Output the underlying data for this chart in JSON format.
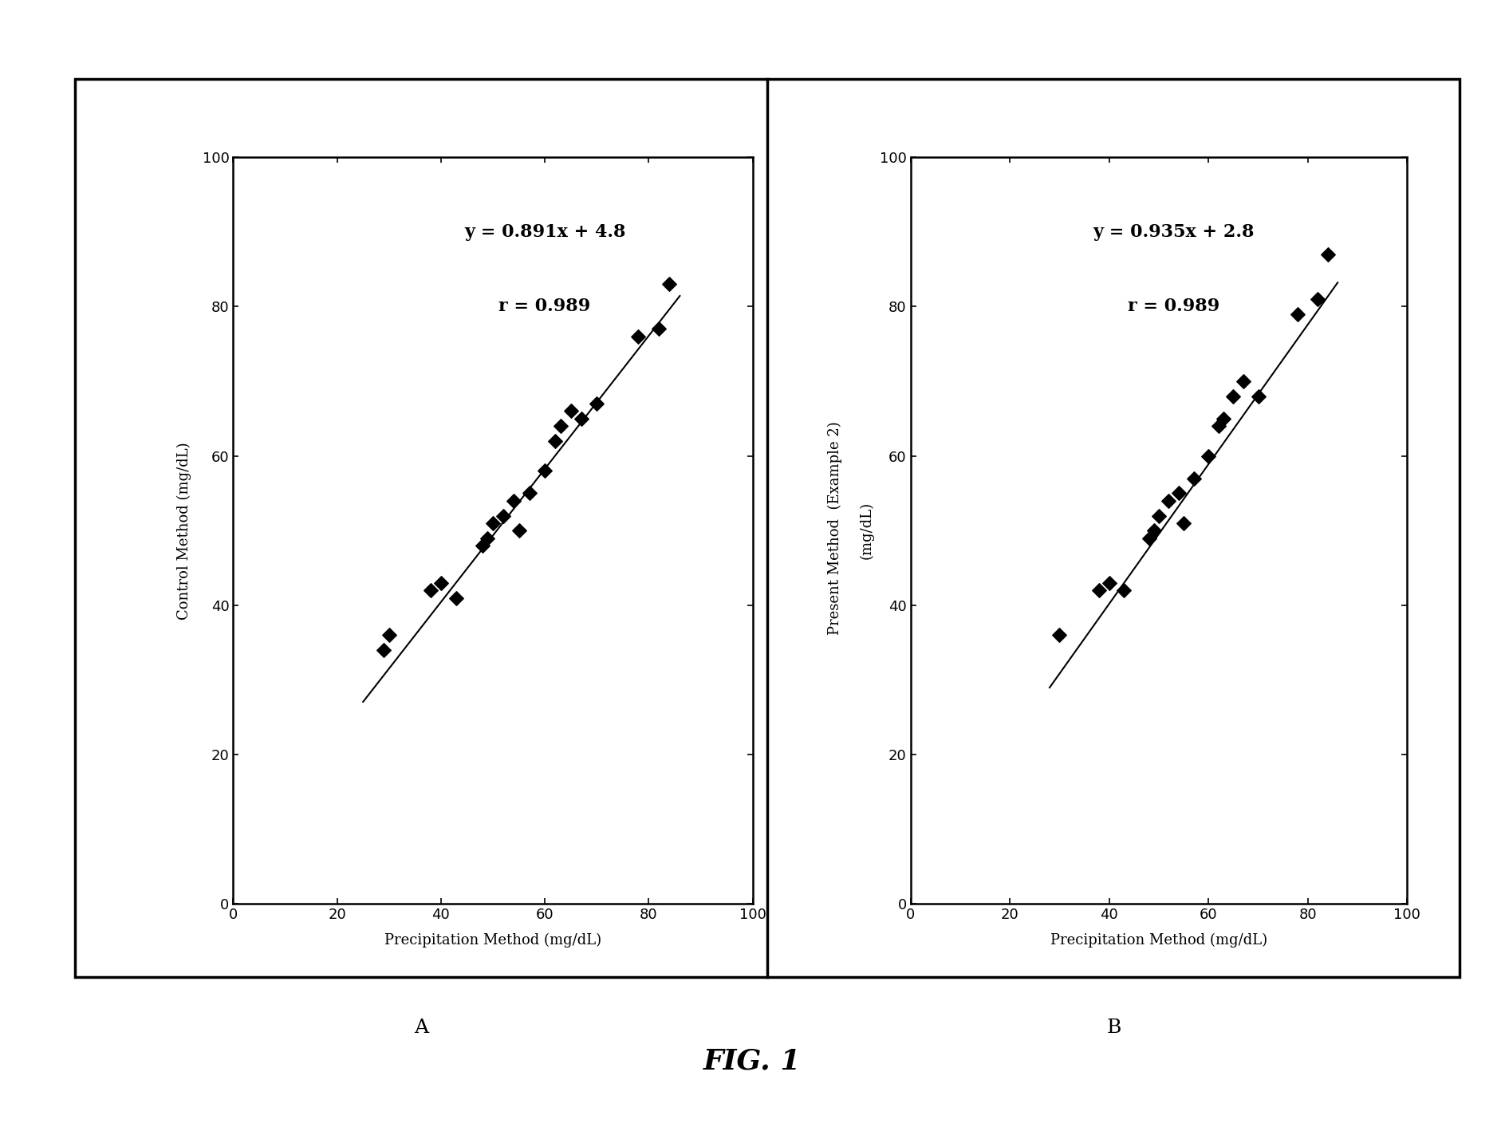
{
  "panel_A": {
    "xlabel": "Precipitation Method (mg/dL)",
    "ylabel": "Control Method (mg/dL)",
    "equation": "y = 0.891x + 4.8",
    "r_value": "r = 0.989",
    "slope": 0.891,
    "intercept": 4.8,
    "xlim": [
      0,
      100
    ],
    "ylim": [
      0,
      100
    ],
    "xticks": [
      0,
      20,
      40,
      60,
      80,
      100
    ],
    "yticks": [
      0,
      20,
      40,
      60,
      80,
      100
    ],
    "x_data": [
      29,
      30,
      38,
      40,
      43,
      48,
      49,
      50,
      52,
      54,
      55,
      57,
      60,
      62,
      63,
      65,
      67,
      70,
      78,
      82,
      84
    ],
    "y_data": [
      34,
      36,
      42,
      43,
      41,
      48,
      49,
      51,
      52,
      54,
      50,
      55,
      58,
      62,
      64,
      66,
      65,
      67,
      76,
      77,
      83
    ],
    "line_x": [
      25,
      86
    ],
    "line_y_slope": 0.891,
    "line_y_intercept": 4.8
  },
  "panel_B": {
    "xlabel": "Precipitation Method (mg/dL)",
    "ylabel_line1": "Present Method  (Example 2)",
    "ylabel_line2": "(mg/dL)",
    "equation": "y = 0.935x + 2.8",
    "r_value": "r = 0.989",
    "slope": 0.935,
    "intercept": 2.8,
    "xlim": [
      0,
      100
    ],
    "ylim": [
      0,
      100
    ],
    "xticks": [
      0,
      20,
      40,
      60,
      80,
      100
    ],
    "yticks": [
      0,
      20,
      40,
      60,
      80,
      100
    ],
    "x_data": [
      30,
      38,
      40,
      43,
      48,
      49,
      50,
      52,
      54,
      55,
      57,
      60,
      62,
      63,
      65,
      67,
      70,
      78,
      82,
      84
    ],
    "y_data": [
      36,
      42,
      43,
      42,
      49,
      50,
      52,
      54,
      55,
      51,
      57,
      60,
      64,
      65,
      68,
      70,
      68,
      79,
      81,
      87
    ],
    "line_x": [
      28,
      86
    ],
    "line_y_slope": 0.935,
    "line_y_intercept": 2.8
  },
  "figure_title": "FIG. 1",
  "background_color": "#ffffff",
  "marker_color": "#000000",
  "line_color": "#000000",
  "marker_size": 80,
  "annotation_fontsize": 16,
  "label_fontsize": 13,
  "tick_fontsize": 13,
  "panel_label_fontsize": 18,
  "fig_title_fontsize": 26
}
